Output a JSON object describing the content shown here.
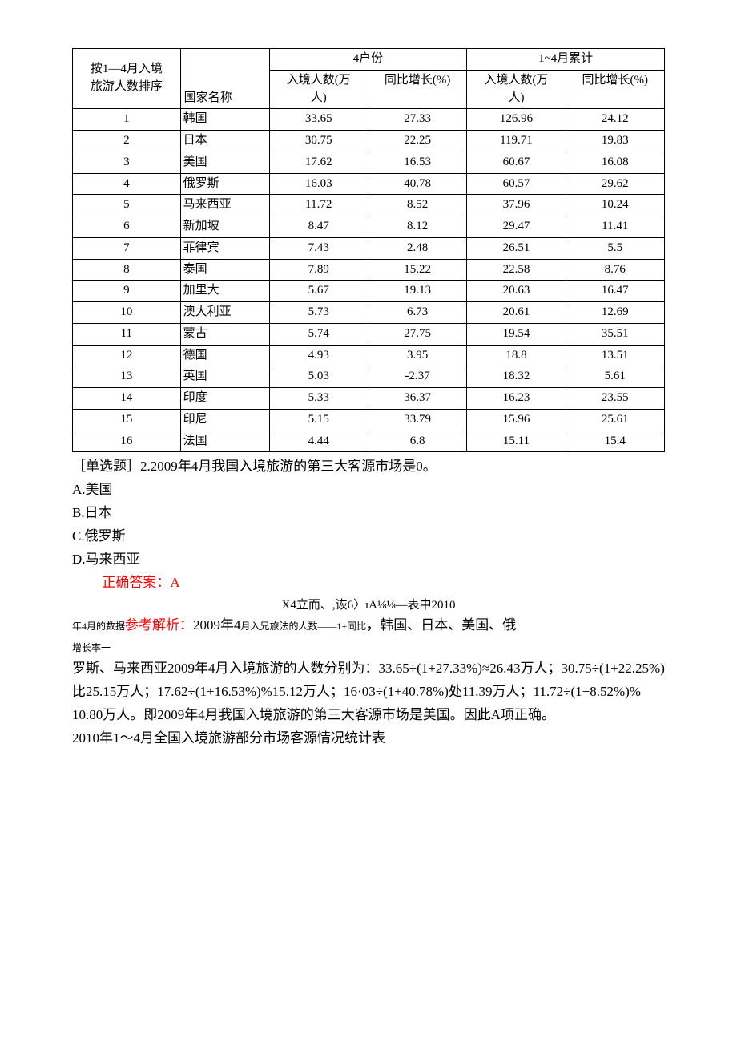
{
  "table": {
    "header": {
      "rank_line1": "按1—4月入境",
      "rank_line2": "旅游人数排序",
      "country": "国家名称",
      "group_april": "4户份",
      "group_cumulative": "1~4月累计",
      "sub_visitors_l1": "入境人数(万",
      "sub_visitors_l2": "人)",
      "sub_growth": "同比增长(%)"
    },
    "rows": [
      {
        "rank": "1",
        "country": "韩国",
        "apr_v": "33.65",
        "apr_g": "27.33",
        "cum_v": "126.96",
        "cum_g": "24.12"
      },
      {
        "rank": "2",
        "country": "日本",
        "apr_v": "30.75",
        "apr_g": "22.25",
        "cum_v": "119.71",
        "cum_g": "19.83"
      },
      {
        "rank": "3",
        "country": "美国",
        "apr_v": "17.62",
        "apr_g": "16.53",
        "cum_v": "60.67",
        "cum_g": "16.08"
      },
      {
        "rank": "4",
        "country": "俄罗斯",
        "apr_v": "16.03",
        "apr_g": "40.78",
        "cum_v": "60.57",
        "cum_g": "29.62"
      },
      {
        "rank": "5",
        "country": "马来西亚",
        "apr_v": "11.72",
        "apr_g": "8.52",
        "cum_v": "37.96",
        "cum_g": "10.24"
      },
      {
        "rank": "6",
        "country": "新加坡",
        "apr_v": "8.47",
        "apr_g": "8.12",
        "cum_v": "29.47",
        "cum_g": "11.41"
      },
      {
        "rank": "7",
        "country": "菲律宾",
        "apr_v": "7.43",
        "apr_g": "2.48",
        "cum_v": "26.51",
        "cum_g": "5.5"
      },
      {
        "rank": "8",
        "country": "泰国",
        "apr_v": "7.89",
        "apr_g": "15.22",
        "cum_v": "22.58",
        "cum_g": "8.76"
      },
      {
        "rank": "9",
        "country": "加里大",
        "apr_v": "5.67",
        "apr_g": "19.13",
        "cum_v": "20.63",
        "cum_g": "16.47"
      },
      {
        "rank": "10",
        "country": "澳大利亚",
        "apr_v": "5.73",
        "apr_g": "6.73",
        "cum_v": "20.61",
        "cum_g": "12.69"
      },
      {
        "rank": "11",
        "country": "蒙古",
        "apr_v": "5.74",
        "apr_g": "27.75",
        "cum_v": "19.54",
        "cum_g": "35.51"
      },
      {
        "rank": "12",
        "country": "德国",
        "apr_v": "4.93",
        "apr_g": "3.95",
        "cum_v": "18.8",
        "cum_g": "13.51"
      },
      {
        "rank": "13",
        "country": "英国",
        "apr_v": "5.03",
        "apr_g": "-2.37",
        "cum_v": "18.32",
        "cum_g": "5.61"
      },
      {
        "rank": "14",
        "country": "印度",
        "apr_v": "5.33",
        "apr_g": "36.37",
        "cum_v": "16.23",
        "cum_g": "23.55"
      },
      {
        "rank": "15",
        "country": "印尼",
        "apr_v": "5.15",
        "apr_g": "33.79",
        "cum_v": "15.96",
        "cum_g": "25.61"
      },
      {
        "rank": "16",
        "country": "法国",
        "apr_v": "4.44",
        "apr_g": "6.8",
        "cum_v": "15.11",
        "cum_g": "15.4"
      }
    ]
  },
  "question": {
    "stem": "［单选题］2.2009年4月我国入境旅游的第三大客源市场是0。",
    "optA": "A.美国",
    "optB": "B.日本",
    "optC": "C.俄罗斯",
    "optD": "D.马来西亚",
    "answer": "正确答案：A"
  },
  "explanation": {
    "center_line": "X4立而、,诙6〉ιA⅛⅛—表中2010",
    "mixed_pre_small": "年4月的数据",
    "mixed_red": "参考解析：",
    "mixed_after1": "2009年4",
    "mixed_small2": "月入兄旅法的人数——1+同比",
    "mixed_after2": "，韩国、日本、美国、俄",
    "mixed_small3": "增长率一",
    "para": "罗斯、马来西亚2009年4月入境旅游的人数分别为：33.65÷(1+27.33%)≈26.43万人；30.75÷(1+22.25%)比25.15万人；17.62÷(1+16.53%)%15.12万人；16·03÷(1+40.78%)处11.39万人；11.72÷(1+8.52%)%",
    "para2": "10.80万人。即2009年4月我国入境旅游的第三大客源市场是美国。因此A项正确。",
    "title_next": "2010年1〜4月全国入境旅游部分市场客源情况统计表"
  },
  "colors": {
    "text": "#000000",
    "accent_red": "#ff0000",
    "border": "#000000",
    "background": "#ffffff"
  }
}
